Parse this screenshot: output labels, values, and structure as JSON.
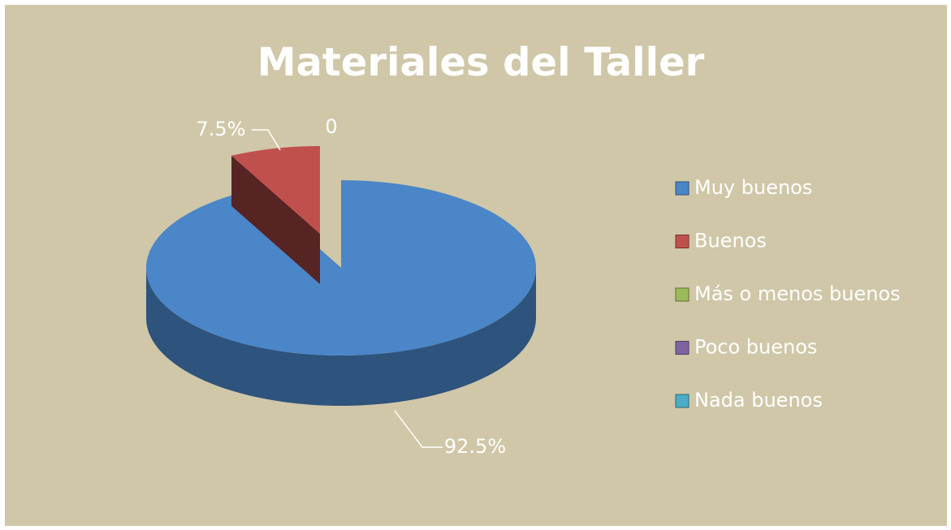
{
  "chart_data": {
    "type": "pie",
    "title": "Materiales del Taller",
    "categories": [
      "Muy buenos",
      "Buenos",
      "Más o menos buenos",
      "Poco buenos",
      "Nada buenos"
    ],
    "values": [
      92.5,
      7.5,
      0,
      0,
      0
    ],
    "value_labels": [
      "92.5%",
      "7.5%",
      "0",
      null,
      null
    ],
    "colors": [
      "#4a86c8",
      "#c0504d",
      "#9bbb59",
      "#8064a2",
      "#4bacc6"
    ],
    "legend": "right"
  }
}
